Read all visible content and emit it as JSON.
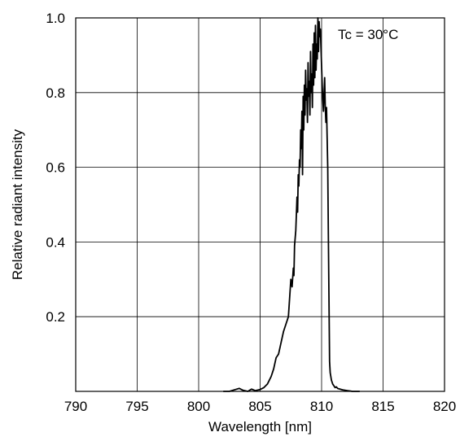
{
  "chart_data": {
    "type": "line",
    "title": "",
    "xlabel": "Wavelength [nm]",
    "ylabel": "Relative radiant intensity",
    "xlim": [
      790,
      820
    ],
    "ylim": [
      0,
      1.0
    ],
    "x_ticks": [
      790,
      795,
      800,
      805,
      810,
      815,
      820
    ],
    "x_tick_labels": [
      "790",
      "795",
      "800",
      "805",
      "810",
      "815",
      "820"
    ],
    "y_ticks": [
      0.2,
      0.4,
      0.6,
      0.8,
      1.0
    ],
    "y_tick_labels": [
      "0.2",
      "0.4",
      "0.6",
      "0.8",
      "1.0"
    ],
    "grid": true,
    "annotation": "Tc = 30°C",
    "series": [
      {
        "color": "#000000",
        "x": [
          802.0,
          802.5,
          803.0,
          803.3,
          803.6,
          804.0,
          804.3,
          804.6,
          805.0,
          805.3,
          805.6,
          805.9,
          806.1,
          806.3,
          806.5,
          806.7,
          806.9,
          807.1,
          807.3,
          807.5,
          807.6,
          807.7,
          807.75,
          807.8,
          807.9,
          808.0,
          808.05,
          808.1,
          808.15,
          808.2,
          808.25,
          808.3,
          808.35,
          808.4,
          808.45,
          808.5,
          808.55,
          808.6,
          808.65,
          808.7,
          808.75,
          808.8,
          808.85,
          808.9,
          808.95,
          809.0,
          809.05,
          809.1,
          809.15,
          809.2,
          809.25,
          809.3,
          809.35,
          809.4,
          809.45,
          809.5,
          809.55,
          809.6,
          809.65,
          809.7,
          809.75,
          809.8,
          809.85,
          809.9,
          809.95,
          810.0,
          810.05,
          810.1,
          810.15,
          810.2,
          810.25,
          810.3,
          810.35,
          810.4,
          810.45,
          810.5,
          810.55,
          810.6,
          810.65,
          810.7,
          810.75,
          810.8,
          810.85,
          810.9,
          811.0,
          811.1,
          811.2,
          811.3,
          811.5,
          811.7,
          811.9,
          812.1,
          812.3,
          812.5,
          812.7,
          812.9,
          813.1
        ],
        "y": [
          0.0,
          0.0,
          0.005,
          0.008,
          0.003,
          0.0,
          0.006,
          0.002,
          0.005,
          0.01,
          0.02,
          0.04,
          0.06,
          0.09,
          0.1,
          0.13,
          0.16,
          0.18,
          0.2,
          0.3,
          0.28,
          0.33,
          0.31,
          0.39,
          0.43,
          0.52,
          0.48,
          0.58,
          0.55,
          0.62,
          0.6,
          0.7,
          0.65,
          0.75,
          0.58,
          0.79,
          0.7,
          0.82,
          0.74,
          0.86,
          0.78,
          0.81,
          0.72,
          0.88,
          0.79,
          0.83,
          0.74,
          0.91,
          0.8,
          0.85,
          0.76,
          0.93,
          0.82,
          0.96,
          0.84,
          0.98,
          0.86,
          0.93,
          0.89,
          1.0,
          0.91,
          0.99,
          0.95,
          0.97,
          0.92,
          0.87,
          0.82,
          0.78,
          0.75,
          0.8,
          0.84,
          0.76,
          0.72,
          0.76,
          0.68,
          0.6,
          0.42,
          0.25,
          0.08,
          0.05,
          0.04,
          0.03,
          0.025,
          0.02,
          0.015,
          0.01,
          0.012,
          0.008,
          0.006,
          0.004,
          0.003,
          0.002,
          0.001,
          0.0,
          0.0,
          0.0,
          0.0
        ]
      }
    ]
  }
}
